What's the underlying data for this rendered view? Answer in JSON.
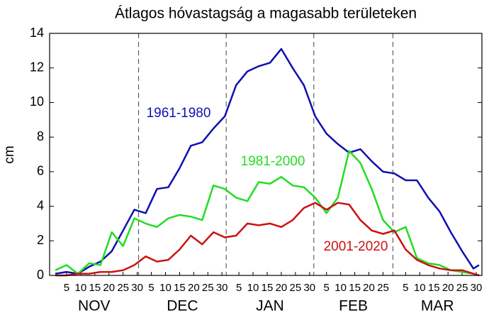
{
  "chart_data": {
    "type": "line",
    "title": "Átlagos hóvastagság a magasabb területeken",
    "y_label": "cm",
    "x": [
      1,
      5,
      9,
      13,
      17,
      21,
      25,
      29,
      33,
      37,
      41,
      45,
      49,
      53,
      57,
      61,
      65,
      69,
      73,
      77,
      81,
      85,
      89,
      93,
      97,
      101,
      105,
      109,
      113,
      117,
      121,
      125,
      129,
      133,
      137,
      141,
      145,
      149,
      151
    ],
    "series": [
      {
        "name": "1961-1980",
        "color": "#1010b0",
        "values": [
          0.1,
          0.2,
          0.1,
          0.5,
          0.8,
          1.4,
          2.6,
          3.8,
          3.6,
          5.0,
          5.1,
          6.2,
          7.5,
          7.7,
          8.5,
          9.2,
          11.0,
          11.8,
          12.1,
          12.3,
          13.1,
          12.0,
          11.0,
          9.2,
          8.2,
          7.6,
          7.1,
          7.3,
          6.6,
          6.0,
          5.9,
          5.5,
          5.5,
          4.5,
          3.7,
          2.5,
          1.4,
          0.4,
          0.6
        ]
      },
      {
        "name": "1981-2000",
        "color": "#22dd22",
        "values": [
          0.3,
          0.6,
          0.1,
          0.7,
          0.6,
          2.5,
          1.7,
          3.3,
          3.0,
          2.8,
          3.3,
          3.5,
          3.4,
          3.2,
          5.2,
          5.0,
          4.5,
          4.3,
          5.4,
          5.3,
          5.7,
          5.2,
          5.1,
          4.5,
          3.6,
          4.5,
          7.2,
          6.5,
          5.0,
          3.2,
          2.5,
          2.8,
          1.0,
          0.7,
          0.6,
          0.3,
          0.2,
          0.1,
          0.0
        ]
      },
      {
        "name": "2001-2020",
        "color": "#cc1111",
        "values": [
          0.0,
          0.0,
          0.1,
          0.1,
          0.2,
          0.2,
          0.3,
          0.6,
          1.1,
          0.8,
          0.9,
          1.5,
          2.3,
          1.8,
          2.5,
          2.2,
          2.3,
          3.0,
          2.9,
          3.0,
          2.8,
          3.2,
          3.9,
          4.2,
          3.8,
          4.2,
          4.1,
          3.2,
          2.6,
          2.4,
          2.6,
          1.5,
          0.9,
          0.6,
          0.4,
          0.3,
          0.3,
          0.1,
          0.0
        ]
      }
    ],
    "xlim": [
      -1,
      152
    ],
    "xticks": [
      {
        "value": 5,
        "label": "5"
      },
      {
        "value": 10,
        "label": "10"
      },
      {
        "value": 15,
        "label": "15"
      },
      {
        "value": 20,
        "label": "20"
      },
      {
        "value": 25,
        "label": "25"
      },
      {
        "value": 30,
        "label": "30"
      },
      {
        "value": 35,
        "label": "5"
      },
      {
        "value": 40,
        "label": "10"
      },
      {
        "value": 45,
        "label": "15"
      },
      {
        "value": 50,
        "label": "20"
      },
      {
        "value": 55,
        "label": "25"
      },
      {
        "value": 60,
        "label": "30"
      },
      {
        "value": 66,
        "label": "5"
      },
      {
        "value": 71,
        "label": "10"
      },
      {
        "value": 76,
        "label": "15"
      },
      {
        "value": 81,
        "label": "20"
      },
      {
        "value": 86,
        "label": "25"
      },
      {
        "value": 91,
        "label": "30"
      },
      {
        "value": 97,
        "label": "5"
      },
      {
        "value": 102,
        "label": "10"
      },
      {
        "value": 107,
        "label": "15"
      },
      {
        "value": 112,
        "label": "20"
      },
      {
        "value": 117,
        "label": "25"
      },
      {
        "value": 125,
        "label": "5"
      },
      {
        "value": 130,
        "label": "10"
      },
      {
        "value": 135,
        "label": "15"
      },
      {
        "value": 140,
        "label": "20"
      },
      {
        "value": 145,
        "label": "25"
      },
      {
        "value": 150,
        "label": "30"
      }
    ],
    "months": [
      "NOV",
      "DEC",
      "JAN",
      "FEB",
      "MAR"
    ],
    "month_boundaries": [
      30.5,
      61.5,
      92.5,
      120.5
    ],
    "ylim": [
      0,
      14
    ],
    "yticks": [
      0,
      2,
      4,
      6,
      8,
      10,
      12,
      14
    ]
  }
}
